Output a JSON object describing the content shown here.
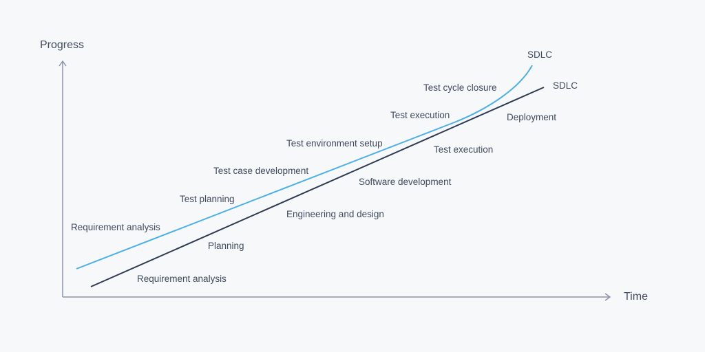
{
  "axes": {
    "y_label": "Progress",
    "x_label": "Time",
    "axis_color": "#8a93a8"
  },
  "series": {
    "stlc": {
      "name": "SDLC",
      "color": "#4fb0e6",
      "phases": [
        "Requirement analysis",
        "Test planning",
        "Test case development",
        "Test environment setup",
        "Test execution",
        "Test cycle closure"
      ]
    },
    "sdlc": {
      "name": "SDLC",
      "color": "#2f3b52",
      "phases": [
        "Requirement analysis",
        "Planning",
        "Engineering and design",
        "Software development",
        "Test execution",
        "Deployment"
      ]
    }
  }
}
